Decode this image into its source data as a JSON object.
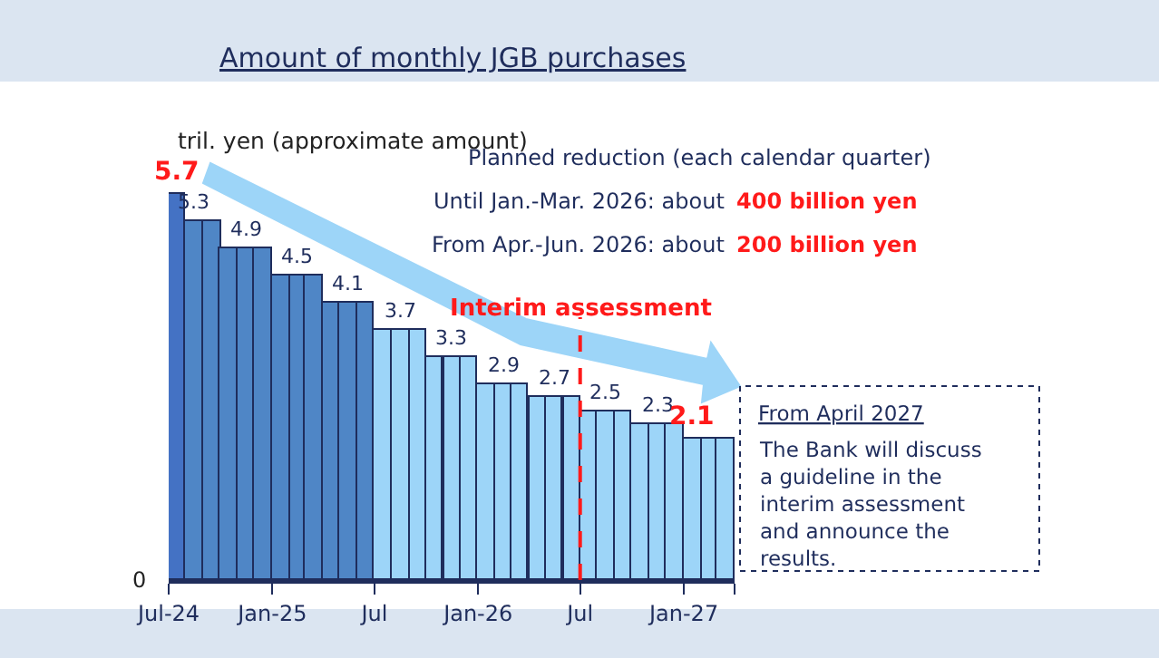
{
  "chart_data": {
    "type": "bar",
    "title": "Amount of monthly JGB purchases",
    "ylabel": "tril. yen (approximate amount)",
    "x": [
      "2024-07-16",
      "2024-08-16",
      "2024-09-16",
      "2024-10-16",
      "2024-11-16",
      "2024-12-16",
      "2025-01-16",
      "2025-02-15",
      "2025-03-16",
      "2025-04-16",
      "2025-05-16",
      "2025-06-16",
      "2025-07-16",
      "2025-08-16",
      "2025-09-16",
      "2025-10-16",
      "2025-11-16",
      "2025-12-16",
      "2026-01-16",
      "2026-02-15",
      "2026-03-16",
      "2026-04-16",
      "2026-05-16",
      "2026-06-16",
      "2026-07-16",
      "2026-08-16",
      "2026-09-16",
      "2026-10-16",
      "2026-11-16",
      "2026-12-16",
      "2027-01-16",
      "2027-02-15",
      "2027-03-16"
    ],
    "values": [
      5.7,
      5.3,
      5.3,
      4.9,
      4.9,
      4.9,
      4.5,
      4.5,
      4.5,
      4.1,
      4.1,
      4.1,
      3.7,
      3.7,
      3.7,
      3.3,
      3.3,
      3.3,
      2.9,
      2.9,
      2.9,
      2.7,
      2.7,
      2.7,
      2.5,
      2.5,
      2.5,
      2.3,
      2.3,
      2.3,
      2.1,
      2.1,
      2.1
    ],
    "value_labels": [
      "5.7",
      "5.3",
      null,
      null,
      "4.9",
      null,
      null,
      "4.5",
      null,
      null,
      "4.1",
      null,
      null,
      "3.7",
      null,
      null,
      "3.3",
      null,
      null,
      "2.9",
      null,
      null,
      "2.7",
      null,
      null,
      "2.5",
      null,
      null,
      "2.3",
      null,
      "2.1",
      null,
      null
    ],
    "colors": [
      "#4472c4",
      "#4f86c6",
      "#4f86c6",
      "#4f86c6",
      "#4f86c6",
      "#4f86c6",
      "#4f86c6",
      "#4f86c6",
      "#4f86c6",
      "#4f86c6",
      "#4f86c6",
      "#4f86c6",
      "#9dd5f8",
      "#9dd5f8",
      "#9dd5f8",
      "#9dd5f8",
      "#9dd5f8",
      "#9dd5f8",
      "#9dd5f8",
      "#9dd5f8",
      "#9dd5f8",
      "#9dd5f8",
      "#9dd5f8",
      "#9dd5f8",
      "#9dd5f8",
      "#9dd5f8",
      "#9dd5f8",
      "#9dd5f8",
      "#9dd5f8",
      "#9dd5f8",
      "#9dd5f8",
      "#9dd5f8",
      "#9dd5f8"
    ],
    "xlim": [
      "2024-07",
      "2027-04"
    ],
    "xticks": [
      {
        "value": "2024-07",
        "label": "Jul-24"
      },
      {
        "value": "2025-01",
        "label": "Jan-25"
      },
      {
        "value": "2025-07",
        "label": "Jul"
      },
      {
        "value": "2026-01",
        "label": "Jan-26"
      },
      {
        "value": "2026-07",
        "label": "Jul"
      },
      {
        "value": "2027-01",
        "label": "Jan-27"
      },
      {
        "value": "2027-04",
        "label": null
      }
    ],
    "ref_lines": [
      {
        "axis": "x",
        "value": "2026-07",
        "label": "Interim assessment",
        "color": "#ff1a1a",
        "line_style": "dashed"
      }
    ],
    "annotations": [
      "Planned reduction (each calendar quarter)",
      "Until Jan.-Mar. 2026: about",
      "400 billion yen",
      "From Apr.-Jun. 2026: about",
      "200 billion yen",
      "From April 2027",
      "The Bank will discuss\na guideline in the\ninterim assessment\nand announce the\nresults.",
      "0"
    ],
    "legend": false
  }
}
